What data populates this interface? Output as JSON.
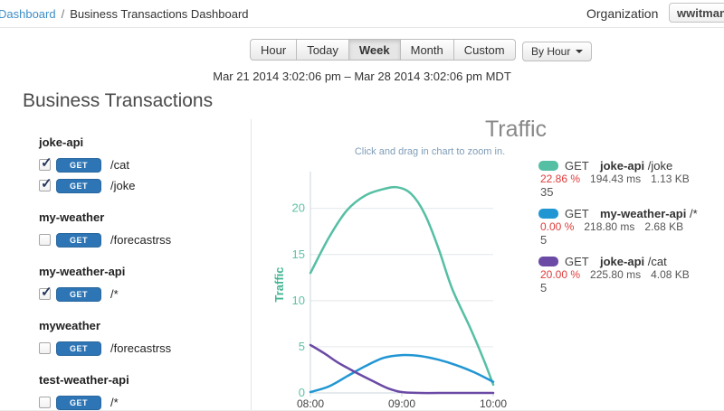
{
  "header": {
    "breadcrumb": {
      "link": "Dashboard",
      "separator": "/",
      "current": "Business Transactions Dashboard"
    },
    "organization_label": "Organization",
    "organization_value": "wwitman"
  },
  "controls": {
    "range_tabs": [
      {
        "label": "Hour",
        "active": false
      },
      {
        "label": "Today",
        "active": false
      },
      {
        "label": "Week",
        "active": true
      },
      {
        "label": "Month",
        "active": false
      },
      {
        "label": "Custom",
        "active": false
      }
    ],
    "interval_dropdown": "By Hour",
    "date_range": "Mar 21 2014 3:02:06 pm  –  Mar 28 2014 3:02:06 pm MDT"
  },
  "sidebar": {
    "title": "Business Transactions",
    "groups": [
      {
        "name": "joke-api",
        "items": [
          {
            "checked": true,
            "method": "GET",
            "path": "/cat"
          },
          {
            "checked": true,
            "method": "GET",
            "path": "/joke"
          }
        ]
      },
      {
        "name": "my-weather",
        "items": [
          {
            "checked": false,
            "method": "GET",
            "path": "/forecastrss"
          }
        ]
      },
      {
        "name": "my-weather-api",
        "items": [
          {
            "checked": true,
            "method": "GET",
            "path": "/*"
          }
        ]
      },
      {
        "name": "myweather",
        "items": [
          {
            "checked": false,
            "method": "GET",
            "path": "/forecastrss"
          }
        ]
      },
      {
        "name": "test-weather-api",
        "items": [
          {
            "checked": false,
            "method": "GET",
            "path": "/*"
          }
        ]
      }
    ]
  },
  "chart_data": {
    "type": "line",
    "title": "Traffic",
    "subtitle": "Click and drag in chart to zoom in.",
    "ylabel": "Traffic",
    "xlabel": "",
    "grid": true,
    "legend_position": "right",
    "xlim_hours": [
      8,
      10
    ],
    "ylim": [
      0,
      23.5
    ],
    "y_ticks": [
      0,
      5,
      10,
      15,
      20
    ],
    "x_ticks": [
      {
        "hour": 8,
        "label": "08:00"
      },
      {
        "hour": 9,
        "label": "09:00"
      },
      {
        "hour": 10,
        "label": "10:00"
      }
    ],
    "series": [
      {
        "name": "GET joke-api /joke",
        "color": "#55bfa3",
        "points": [
          [
            8,
            13.0
          ],
          [
            8.2,
            16.8
          ],
          [
            8.4,
            19.8
          ],
          [
            8.6,
            21.4
          ],
          [
            8.8,
            22.1
          ],
          [
            8.95,
            22.3
          ],
          [
            9.1,
            21.6
          ],
          [
            9.25,
            19.4
          ],
          [
            9.4,
            15.7
          ],
          [
            9.55,
            11.3
          ],
          [
            9.75,
            7.0
          ],
          [
            9.9,
            3.5
          ],
          [
            10,
            0.9
          ]
        ]
      },
      {
        "name": "GET my-weather-api /*",
        "color": "#2196d3",
        "points": [
          [
            8,
            0.1
          ],
          [
            8.2,
            0.7
          ],
          [
            8.4,
            1.8
          ],
          [
            8.6,
            2.9
          ],
          [
            8.8,
            3.8
          ],
          [
            9,
            4.1
          ],
          [
            9.2,
            4.0
          ],
          [
            9.4,
            3.6
          ],
          [
            9.6,
            3.0
          ],
          [
            9.8,
            2.2
          ],
          [
            10,
            1.2
          ]
        ]
      },
      {
        "name": "GET joke-api /cat",
        "color": "#6a4aa5",
        "points": [
          [
            8,
            5.2
          ],
          [
            8.15,
            4.3
          ],
          [
            8.3,
            3.3
          ],
          [
            8.5,
            2.2
          ],
          [
            8.7,
            1.2
          ],
          [
            8.85,
            0.5
          ],
          [
            9,
            0.1
          ],
          [
            9.2,
            0
          ],
          [
            9.5,
            0
          ],
          [
            9.75,
            0
          ],
          [
            10,
            0
          ]
        ]
      }
    ]
  },
  "legend": [
    {
      "color": "#55bfa3",
      "method": "GET",
      "api": "joke-api",
      "path": "/joke",
      "error_pct": "22.86 %",
      "avg_response": "194.43 ms",
      "payload": "1.13 KB",
      "count": "35"
    },
    {
      "color": "#2196d3",
      "method": "GET",
      "api": "my-weather-api",
      "path": "/*",
      "error_pct": "0.00 %",
      "avg_response": "218.80 ms",
      "payload": "2.68 KB",
      "count": "5"
    },
    {
      "color": "#6a4aa5",
      "method": "GET",
      "api": "joke-api",
      "path": "/cat",
      "error_pct": "20.00 %",
      "avg_response": "225.80 ms",
      "payload": "4.08 KB",
      "count": "5"
    }
  ]
}
